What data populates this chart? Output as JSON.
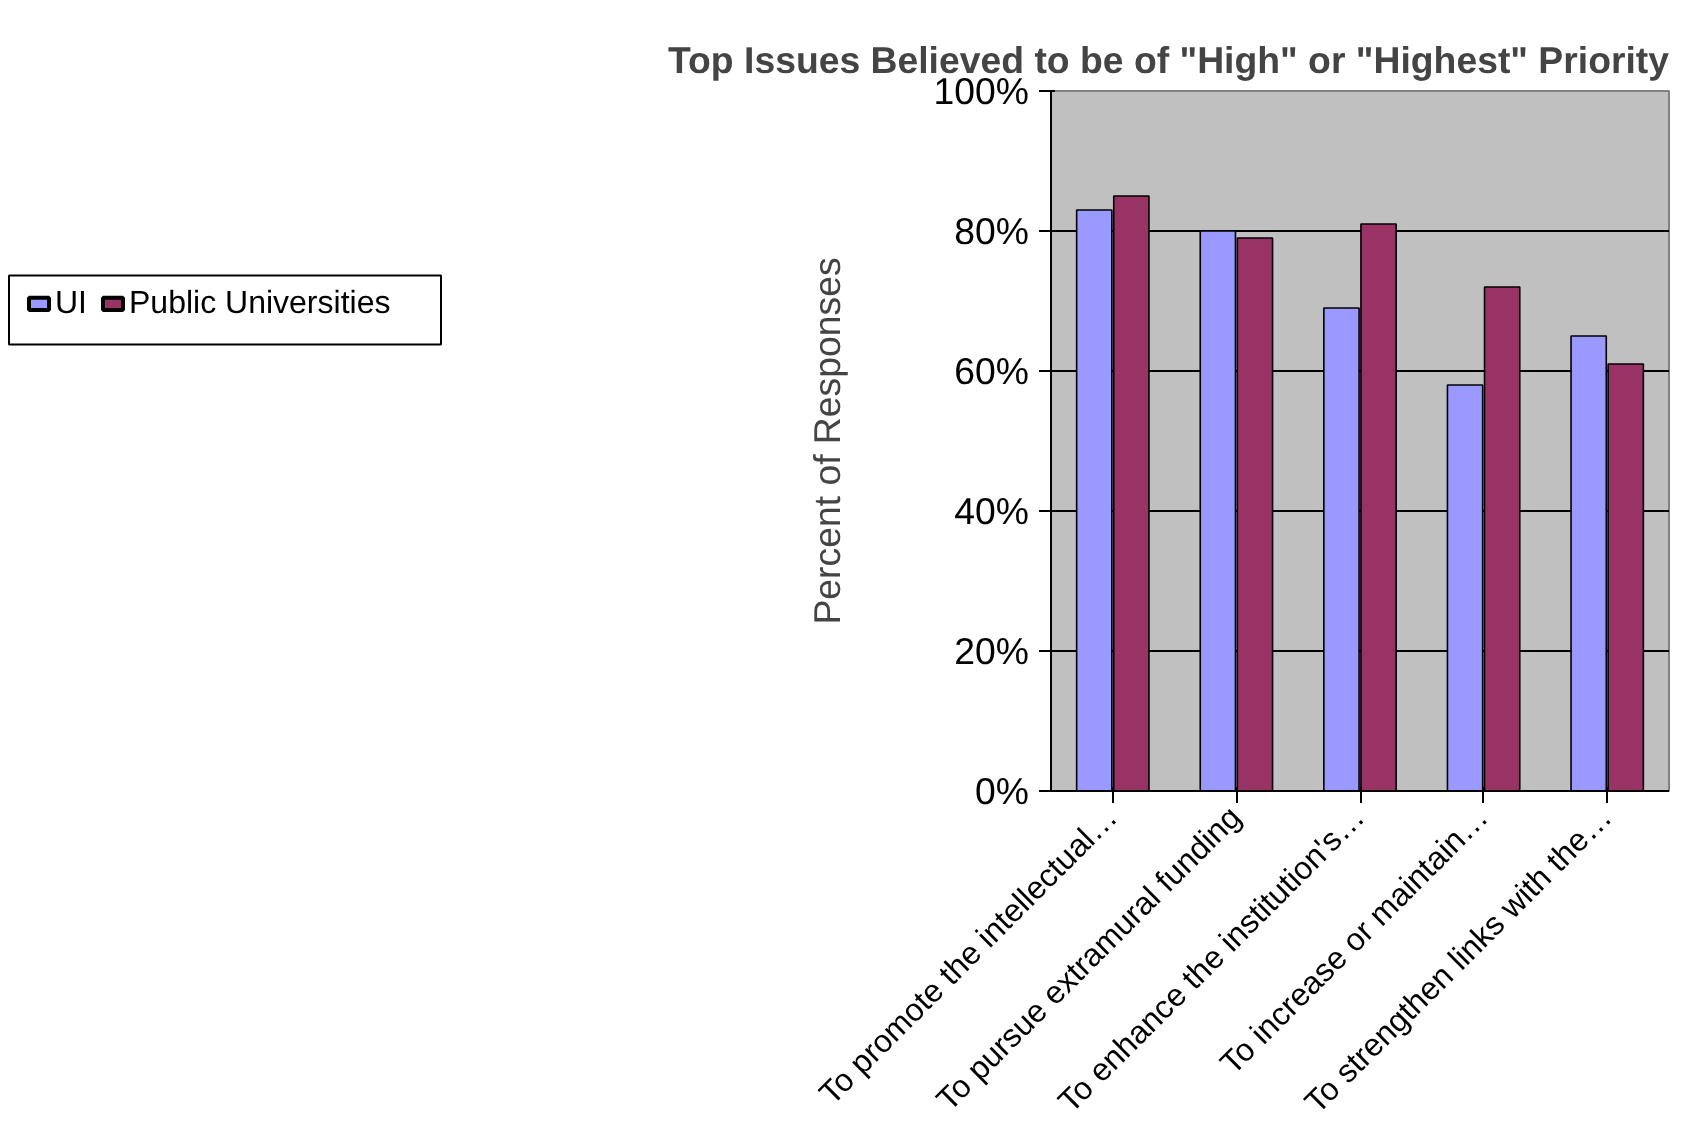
{
  "chart_data": {
    "type": "bar",
    "title": "Top Issues Believed to be of \"High\" or \"Highest\" Priority",
    "ylabel": "Percent of Responses",
    "categories": [
      "To promote the intellectual…",
      "To pursue extramural funding",
      "To enhance the institution's…",
      "To increase or maintain…",
      "To strengthen links with the…"
    ],
    "series": [
      {
        "name": "UI",
        "color": "#9999ff",
        "values": [
          83,
          80,
          69,
          58,
          65
        ]
      },
      {
        "name": "Public Universities",
        "color": "#993366",
        "values": [
          85,
          79,
          81,
          72,
          61
        ]
      }
    ],
    "ylim": [
      0,
      100
    ],
    "yticks": [
      {
        "value": 0,
        "label": "0%"
      },
      {
        "value": 20,
        "label": "20%"
      },
      {
        "value": 40,
        "label": "40%"
      },
      {
        "value": 60,
        "label": "60%"
      },
      {
        "value": 80,
        "label": "80%"
      },
      {
        "value": 100,
        "label": "100%"
      }
    ],
    "grid": "y",
    "legend": "left"
  }
}
